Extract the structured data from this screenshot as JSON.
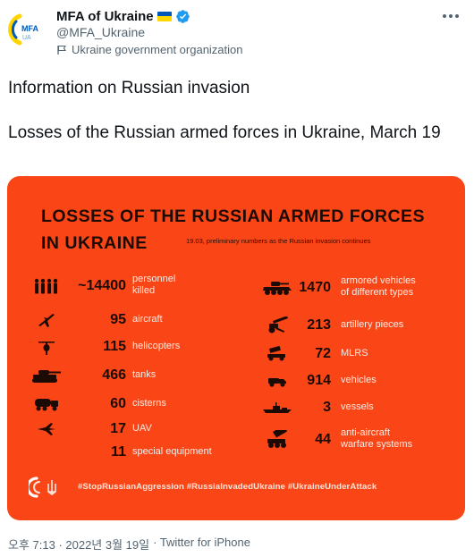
{
  "tweet": {
    "display_name": "MFA of Ukraine",
    "handle": "@MFA_Ukraine",
    "org_label": "Ukraine government organization",
    "text_lines": [
      "Information on Russian invasion",
      "Losses of the Russian armed forces in Ukraine, March 19"
    ],
    "timestamp": "오후 7:13 · 2022년 3월 19일",
    "source": "· Twitter for iPhone",
    "avatar_text": "MFA",
    "avatar_subtext": "UA",
    "more_icon": "more-icon",
    "verified_icon": "verified-badge-icon",
    "colors": {
      "accent": "#1d9bf0",
      "muted": "#536471",
      "media_bg": "#fa4616"
    }
  },
  "infographic": {
    "title_line1": "LOSSES OF THE RUSSIAN ARMED FORCES",
    "title_line2": "IN UKRAINE",
    "subtitle": "19.03, preliminary numbers as the Russian invasion continues",
    "left": [
      {
        "icon": "soldiers-icon",
        "value": "~14400",
        "label": "personnel\nkilled"
      },
      {
        "icon": "aircraft-icon",
        "value": "95",
        "label": "aircraft"
      },
      {
        "icon": "helicopter-icon",
        "value": "115",
        "label": "helicopters"
      },
      {
        "icon": "tank-icon",
        "value": "466",
        "label": "tanks"
      },
      {
        "icon": "cistern-icon",
        "value": "60",
        "label": "cisterns"
      },
      {
        "icon": "uav-icon",
        "value": "17",
        "label": "UAV"
      },
      {
        "icon": "none",
        "value": "11",
        "label": "special equipment"
      }
    ],
    "right": [
      {
        "icon": "armored-vehicle-icon",
        "value": "1470",
        "label": "armored vehicles\nof different types"
      },
      {
        "icon": "artillery-icon",
        "value": "213",
        "label": "artillery pieces"
      },
      {
        "icon": "mlrs-icon",
        "value": "72",
        "label": "MLRS"
      },
      {
        "icon": "vehicle-icon",
        "value": "914",
        "label": "vehicles"
      },
      {
        "icon": "vessel-icon",
        "value": "3",
        "label": "vessels"
      },
      {
        "icon": "anti-aircraft-icon",
        "value": "44",
        "label": "anti-aircraft\nwarfare systems"
      }
    ],
    "hashtags": "#StopRussianAggression #RussiaInvadedUkraine #UkraineUnderAttack"
  }
}
